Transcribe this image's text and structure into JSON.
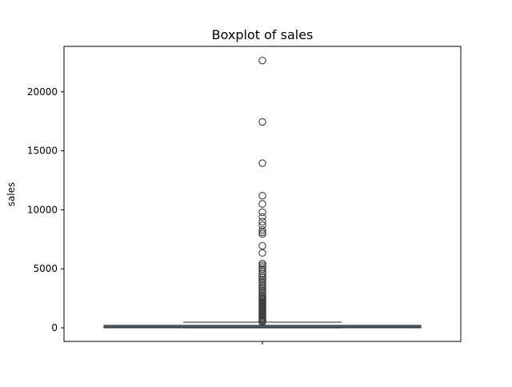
{
  "chart_data": {
    "type": "boxplot",
    "title": "Boxplot of sales",
    "xlabel": "",
    "ylabel": "sales",
    "ylim": [
      -1150,
      23850
    ],
    "yticks": [
      0,
      5000,
      10000,
      15000,
      20000
    ],
    "ytick_labels": [
      "0",
      "5000",
      "10000",
      "15000",
      "20000"
    ],
    "grid": false,
    "legend": "none",
    "box": {
      "min": 0,
      "q1": 20,
      "median": 60,
      "q3": 200,
      "whisker_low": 0,
      "whisker_high": 480,
      "color": "#4c72b0"
    },
    "outliers": [
      22650,
      17450,
      13950,
      11200,
      10500,
      9800,
      9400,
      9000,
      8700,
      8300,
      8100,
      7950,
      6950,
      6350,
      5450,
      5300,
      5150,
      5000,
      4800,
      4600,
      4400,
      4250,
      4100,
      3950,
      3800,
      3600,
      3450,
      3300,
      3150,
      3000,
      2850,
      2700,
      2600,
      2500,
      2400,
      2300,
      2200,
      2100,
      2000,
      1900,
      1800,
      1700,
      1600,
      1500,
      1400,
      1300,
      1200,
      1100,
      1000,
      900,
      800,
      700,
      600,
      550,
      500
    ]
  }
}
